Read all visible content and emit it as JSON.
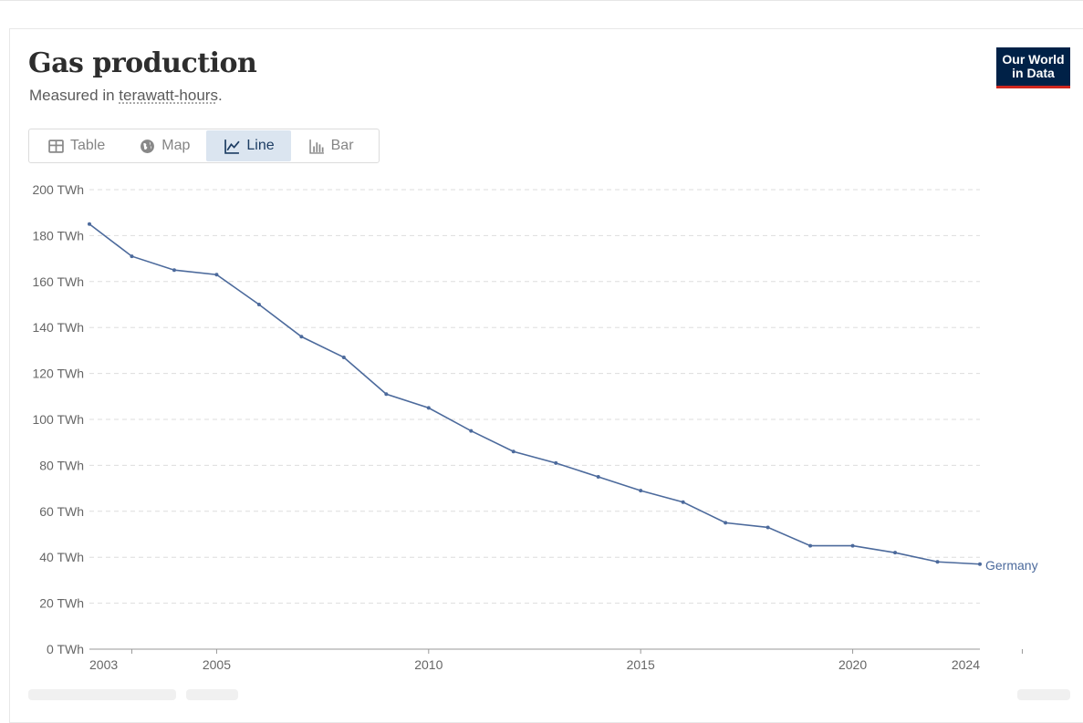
{
  "header": {
    "title": "Gas production",
    "subtitle_prefix": "Measured in ",
    "subtitle_link": "terawatt-hours",
    "subtitle_suffix": "."
  },
  "logo": {
    "line1": "Our World",
    "line2": "in Data"
  },
  "tabs": [
    {
      "label": "Table",
      "icon": "table-icon",
      "active": false
    },
    {
      "label": "Map",
      "icon": "globe-icon",
      "active": false
    },
    {
      "label": "Line",
      "icon": "line-chart-icon",
      "active": true
    },
    {
      "label": "Bar",
      "icon": "bar-chart-icon",
      "active": false
    }
  ],
  "colors": {
    "series": "#4c6a9c",
    "grid": "#dddddd",
    "axis": "#999999",
    "active_tab": "#dbe5f0"
  },
  "chart_data": {
    "type": "line",
    "title": "Gas production",
    "subtitle": "Measured in terawatt-hours.",
    "ylim": [
      0,
      200
    ],
    "yticks": [
      0,
      20,
      40,
      60,
      80,
      100,
      120,
      140,
      160,
      180,
      200
    ],
    "yunit": " TWh",
    "xticks": [
      2003,
      2005,
      2010,
      2015,
      2020,
      2024
    ],
    "xlim": [
      2002,
      2023
    ],
    "grid": "horizontal-dashed",
    "series": [
      {
        "name": "Germany",
        "x": [
          2002,
          2003,
          2004,
          2005,
          2006,
          2007,
          2008,
          2009,
          2010,
          2011,
          2012,
          2013,
          2014,
          2015,
          2016,
          2017,
          2018,
          2019,
          2020,
          2021,
          2022,
          2023
        ],
        "values": [
          185,
          171,
          165,
          163,
          150,
          136,
          127,
          111,
          105,
          95,
          86,
          81,
          75,
          69,
          64,
          55,
          53,
          45,
          45,
          42,
          38,
          37
        ]
      }
    ]
  }
}
